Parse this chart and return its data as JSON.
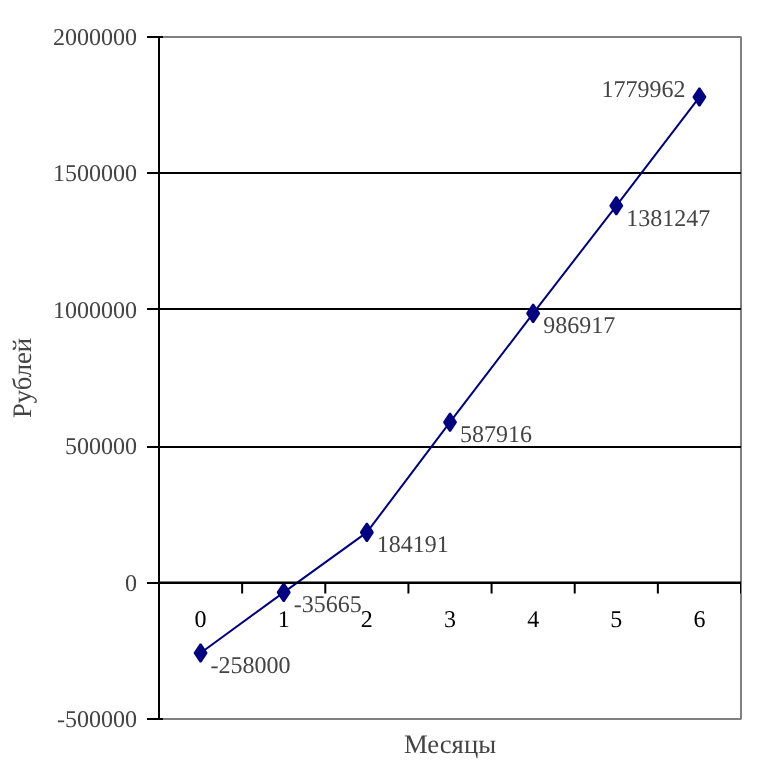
{
  "chart_data": {
    "type": "line",
    "xlabel": "Месяцы",
    "ylabel": "Рублей",
    "categories": [
      "0",
      "1",
      "2",
      "3",
      "4",
      "5",
      "6"
    ],
    "series": [
      {
        "color": "#000080",
        "values": [
          -258000,
          -35665,
          184191,
          587916,
          986917,
          1381247,
          1779962
        ]
      }
    ],
    "ylim": [
      -500000,
      2000000
    ],
    "yticks": [
      -500000,
      0,
      500000,
      1000000,
      1500000,
      2000000
    ],
    "grid": "y",
    "marker": "diamond",
    "data_labels": true
  }
}
